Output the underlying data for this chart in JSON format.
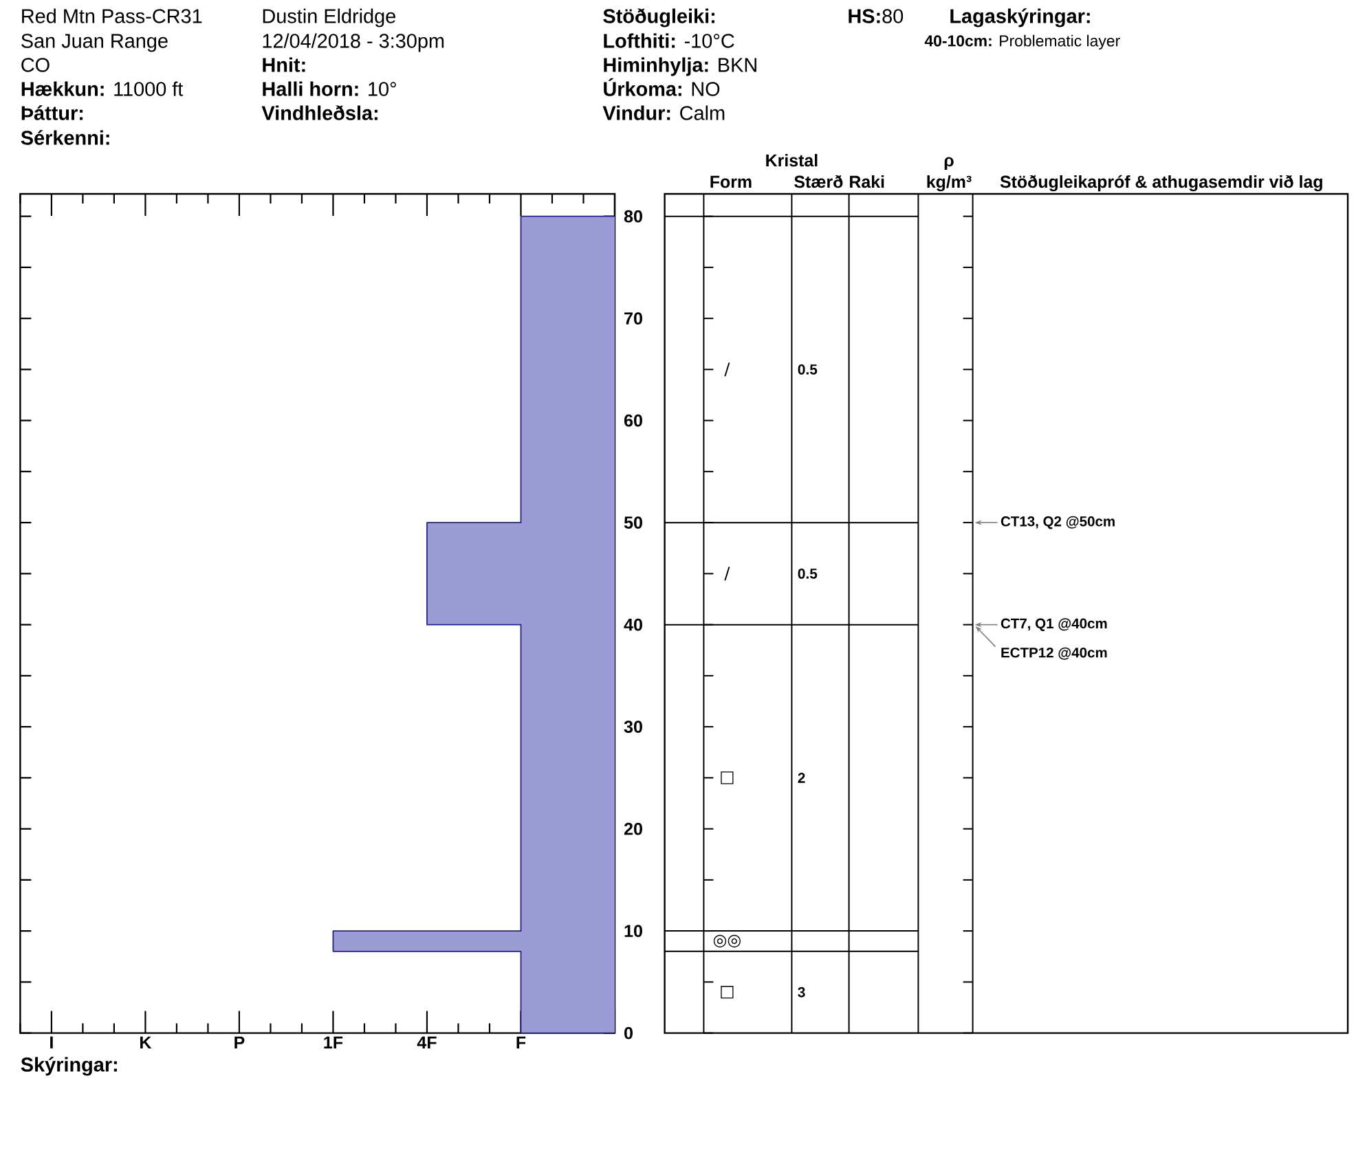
{
  "chart_data": [
    {
      "type": "area",
      "categories": [
        "I",
        "K",
        "P",
        "1F",
        "4F",
        "F",
        null
      ],
      "series": [
        {
          "x": [
            null,
            "F",
            "F",
            "4F",
            "4F",
            "F",
            "F",
            "1F",
            "1F",
            "F",
            "F",
            null
          ],
          "values": [
            80,
            80,
            50,
            50,
            40,
            40,
            10,
            10,
            8,
            8,
            0,
            0
          ],
          "color": "#9b9bd5"
        }
      ],
      "ylim": [
        0,
        82.2
      ],
      "yticks": [
        0,
        {
          "value": 5,
          "label": null
        },
        10,
        {
          "value": 15,
          "label": null
        },
        20,
        {
          "value": 25,
          "label": null
        },
        30,
        {
          "value": 35,
          "label": null
        },
        40,
        {
          "value": 45,
          "label": null
        },
        50,
        {
          "value": 55,
          "label": null
        },
        60,
        {
          "value": 65,
          "label": null
        },
        70,
        {
          "value": 75,
          "label": null
        },
        80
      ],
      "annotations": [
        "Red Mtn Pass-CR31",
        "San Juan Range",
        "CO",
        "**Hækkun:** 11000 ft",
        "**Þáttur:**",
        "**Sérkenni:**",
        "Dustin Eldridge",
        "12/04/2018 - 3:30pm",
        "**Hnit:**",
        "**Halli horn:** 10°",
        "**Vindhleðsla:**",
        "**Stöðugleiki:**",
        "**Lofthiti:** -10°C",
        "**Himinhylja:** BKN",
        "**Úrkoma:** NO",
        "**Vindur:** Calm",
        "**HS:**80",
        "**Lagaskýringar:**",
        "**40-10cm:** Problematic layer",
        "**Skýringar:**"
      ]
    },
    {
      "type": "other",
      "title": "Kristal",
      "categories": [
        "Form",
        "Stærð",
        "Raki",
        "ρ kg/m³",
        "Stöðugleikapróf & athugasemdir við lag"
      ],
      "annotations": [
        "/",
        "/",
        "□",
        "◎◎",
        "□",
        "0.5",
        "0.5",
        "2",
        "3",
        "CT13, Q2 @50cm",
        "CT7, Q1 @40cm",
        "ECTP12 @40cm"
      ]
    }
  ]
}
